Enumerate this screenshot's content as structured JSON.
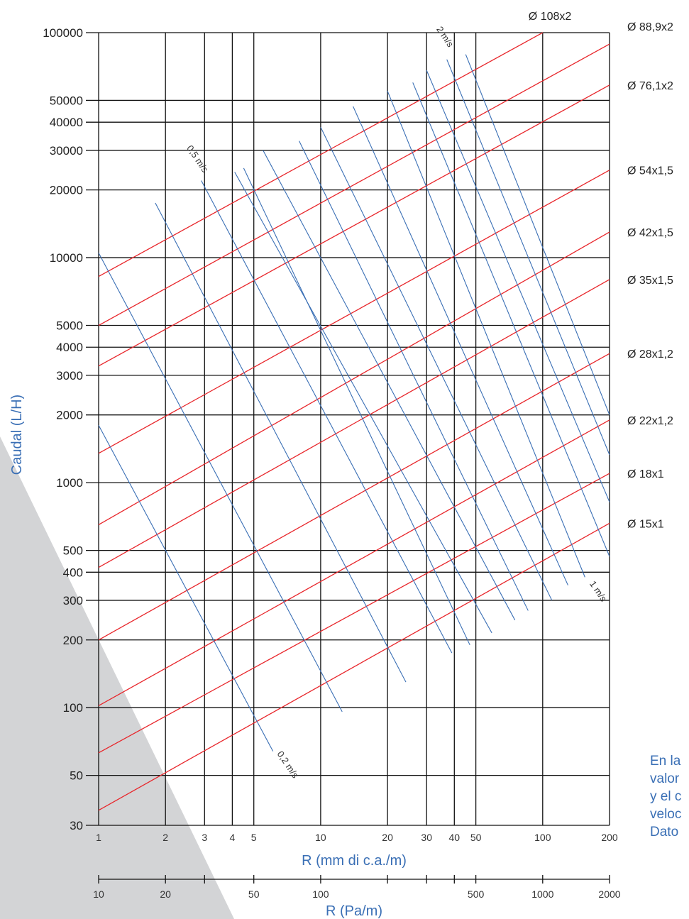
{
  "chart_data": {
    "type": "line",
    "y_axis": {
      "label": "Caudal (L/H)",
      "scale": "log",
      "range": [
        30,
        100000
      ],
      "ticks": [
        30,
        50,
        100,
        200,
        300,
        400,
        500,
        1000,
        2000,
        3000,
        4000,
        5000,
        10000,
        20000,
        30000,
        40000,
        50000,
        100000
      ],
      "tick_labels": [
        "30",
        "50",
        "100",
        "200",
        "300",
        "400",
        "500",
        "1000",
        "2000",
        "3000",
        "4000",
        "5000",
        "10000",
        "20000",
        "30000",
        "40000",
        "50000",
        "100000"
      ]
    },
    "x_axis": {
      "label": "R (mm di c.a./m)",
      "scale": "log",
      "range": [
        1,
        200
      ],
      "ticks": [
        1,
        2,
        3,
        4,
        5,
        10,
        20,
        30,
        40,
        50,
        100,
        200
      ],
      "tick_labels": [
        "1",
        "2",
        "3",
        "4",
        "5",
        "10",
        "20",
        "30",
        "40",
        "50",
        "100",
        "200"
      ]
    },
    "x_axis_secondary": {
      "label": "R (Pa/m)",
      "scale": "log",
      "range": [
        10,
        2000
      ],
      "ticks": [
        10,
        20,
        30,
        50,
        100,
        200,
        300,
        400,
        500,
        1000,
        2000
      ],
      "tick_labels": [
        "10",
        "20",
        "",
        "50",
        "100",
        "",
        "",
        "",
        "500",
        "1000",
        "2000"
      ]
    },
    "grid": true,
    "pipe_series_color": "#e8262b",
    "velocity_series_color": "#3a6fb5",
    "pipe_series": [
      {
        "name": "Ø 108x2",
        "x": [
          1,
          100
        ],
        "y": [
          8250,
          100000
        ]
      },
      {
        "name": "Ø 88,9x2",
        "x": [
          1,
          200
        ],
        "y": [
          5000,
          89000
        ]
      },
      {
        "name": "Ø 76,1x2",
        "x": [
          1,
          200
        ],
        "y": [
          3300,
          58500
        ]
      },
      {
        "name": "Ø 54x1,5",
        "x": [
          1,
          200
        ],
        "y": [
          1350,
          24500
        ]
      },
      {
        "name": "Ø 42x1,5",
        "x": [
          1,
          200
        ],
        "y": [
          650,
          13000
        ]
      },
      {
        "name": "Ø 35x1,5",
        "x": [
          1,
          200
        ],
        "y": [
          420,
          8000
        ]
      },
      {
        "name": "Ø 28x1,2",
        "x": [
          1,
          200
        ],
        "y": [
          200,
          3750
        ]
      },
      {
        "name": "Ø 22x1,2",
        "x": [
          1,
          200
        ],
        "y": [
          102,
          1900
        ]
      },
      {
        "name": "Ø 18x1",
        "x": [
          1,
          200
        ],
        "y": [
          63,
          1100
        ]
      },
      {
        "name": "Ø 15x1",
        "x": [
          1,
          200
        ],
        "y": [
          35,
          660
        ]
      }
    ],
    "velocity_series": [
      {
        "name": "0,2 m/s",
        "x": [
          1,
          6.1
        ],
        "y": [
          1800,
          64
        ]
      },
      {
        "name": "",
        "x": [
          1,
          12.5
        ],
        "y": [
          10500,
          96
        ]
      },
      {
        "name": "",
        "x": [
          1.8,
          24.2
        ],
        "y": [
          17500,
          130
        ]
      },
      {
        "name": "0,5 m/s",
        "x": [
          2.9,
          39
        ],
        "y": [
          22000,
          175
        ]
      },
      {
        "name": "",
        "x": [
          4.5,
          47
        ],
        "y": [
          25000,
          190
        ]
      },
      {
        "name": "",
        "x": [
          4.1,
          59
        ],
        "y": [
          24000,
          215
        ]
      },
      {
        "name": "",
        "x": [
          5.5,
          75
        ],
        "y": [
          30000,
          245
        ]
      },
      {
        "name": "",
        "x": [
          8,
          86
        ],
        "y": [
          33000,
          270
        ]
      },
      {
        "name": "",
        "x": [
          10,
          110
        ],
        "y": [
          38000,
          300
        ]
      },
      {
        "name": "",
        "x": [
          14,
          130
        ],
        "y": [
          47000,
          350
        ]
      },
      {
        "name": "1 m/s",
        "x": [
          20,
          155
        ],
        "y": [
          55000,
          380
        ]
      },
      {
        "name": "",
        "x": [
          26,
          200
        ],
        "y": [
          60000,
          470
        ]
      },
      {
        "name": "",
        "x": [
          30,
          200
        ],
        "y": [
          68000,
          820
        ]
      },
      {
        "name": "2 m/s",
        "x": [
          37,
          200
        ],
        "y": [
          76000,
          1330
        ]
      },
      {
        "name": "",
        "x": [
          45,
          200
        ],
        "y": [
          80000,
          2000
        ]
      }
    ]
  },
  "note_lines": [
    "En la",
    "valor",
    "y el c",
    "veloc",
    "Dato"
  ]
}
